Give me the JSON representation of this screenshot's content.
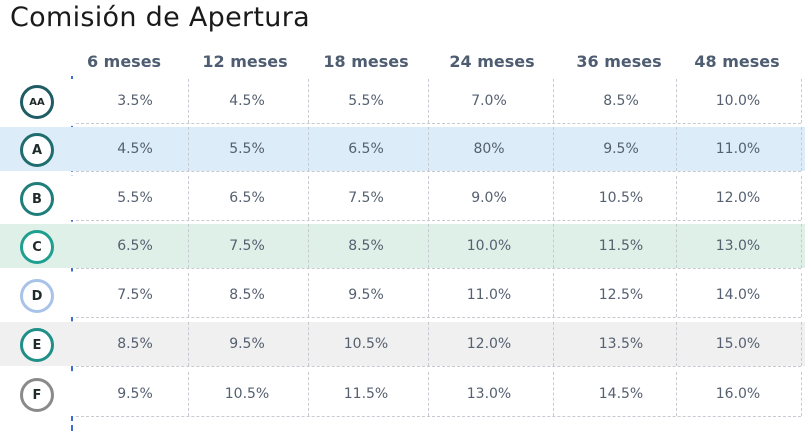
{
  "title": "Comisión de Apertura",
  "columns": [
    "6 meses",
    "12 meses",
    "18 meses",
    "24 meses",
    "36 meses",
    "48 meses"
  ],
  "rows": [
    {
      "grade": "AA",
      "values": [
        "3.5%",
        "4.5%",
        "5.5%",
        "7.0%",
        "8.5%",
        "10.0%"
      ],
      "bg": "#ffffff",
      "ring": "#1f5c63"
    },
    {
      "grade": "A",
      "values": [
        "4.5%",
        "5.5%",
        "6.5%",
        "80%",
        "9.5%",
        "11.0%"
      ],
      "bg": "#dcecf8",
      "ring": "#1f6d6e"
    },
    {
      "grade": "B",
      "values": [
        "5.5%",
        "6.5%",
        "7.5%",
        "9.0%",
        "10.5%",
        "12.0%"
      ],
      "bg": "#ffffff",
      "ring": "#1f7d7a"
    },
    {
      "grade": "C",
      "values": [
        "6.5%",
        "7.5%",
        "8.5%",
        "10.0%",
        "11.5%",
        "13.0%"
      ],
      "bg": "#dff0e8",
      "ring": "#1f9f8f"
    },
    {
      "grade": "D",
      "values": [
        "7.5%",
        "8.5%",
        "9.5%",
        "11.0%",
        "12.5%",
        "14.0%"
      ],
      "bg": "#ffffff",
      "ring": "#a9c2ea"
    },
    {
      "grade": "E",
      "values": [
        "8.5%",
        "9.5%",
        "10.5%",
        "12.0%",
        "13.5%",
        "15.0%"
      ],
      "bg": "#f0f0f0",
      "ring": "#1f8f88"
    },
    {
      "grade": "F",
      "values": [
        "9.5%",
        "10.5%",
        "11.5%",
        "13.0%",
        "14.5%",
        "16.0%"
      ],
      "bg": "#ffffff",
      "ring": "#8a8a8a"
    }
  ]
}
